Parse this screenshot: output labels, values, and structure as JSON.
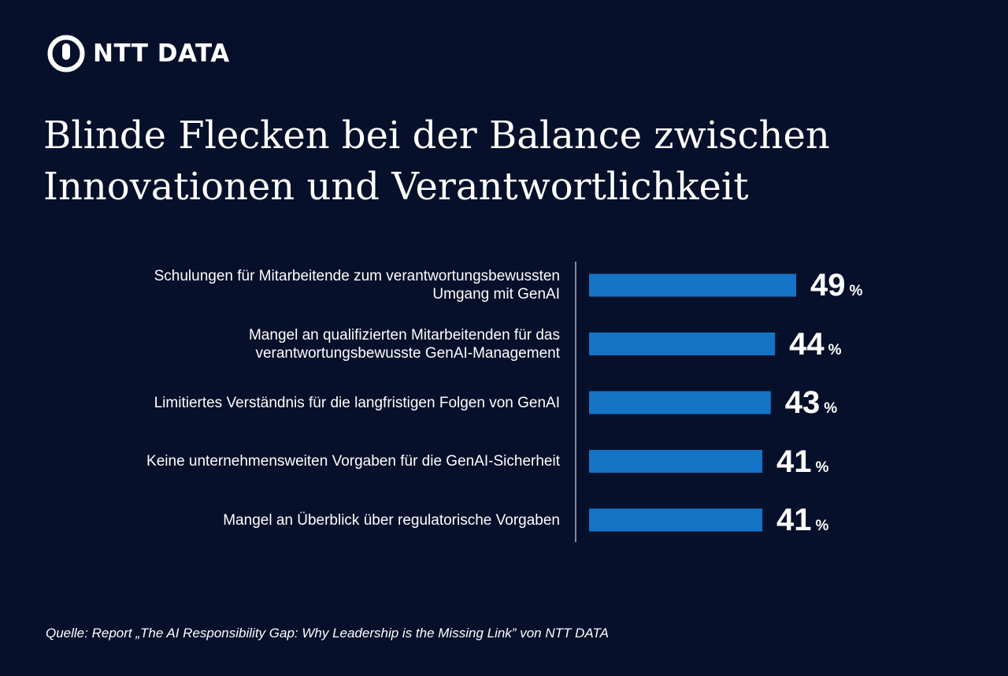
{
  "brand": {
    "name": "NTT DATA",
    "logo_icon": "ntt-data-logo-icon"
  },
  "title_lines": [
    "Blinde Flecken bei der Balance zwischen",
    "Innovationen und Verantwortlichkeit"
  ],
  "colors": {
    "background": "#07102a",
    "bar": "#1473c5",
    "text": "#ffffff"
  },
  "chart_data": {
    "type": "bar",
    "orientation": "horizontal",
    "categories": [
      [
        "Schulungen für Mitarbeitende zum verantwortungsbewussten",
        "Umgang mit GenAI"
      ],
      [
        "Mangel an qualifizierten Mitarbeitenden für das",
        "verantwortungsbewusste GenAI-Management"
      ],
      [
        "Limitiertes Verständnis für die langfristigen Folgen von GenAI"
      ],
      [
        "Keine unternehmensweiten Vorgaben für die GenAI-Sicherheit"
      ],
      [
        "Mangel an Überblick über regulatorische Vorgaben"
      ]
    ],
    "values": [
      49,
      44,
      43,
      41,
      41
    ],
    "value_unit": "%",
    "xlim": [
      0,
      100
    ],
    "grid": false,
    "legend": "none"
  },
  "source": "Quelle: Report „The AI Responsibility Gap: Why Leadership is the Missing Link” von NTT DATA"
}
